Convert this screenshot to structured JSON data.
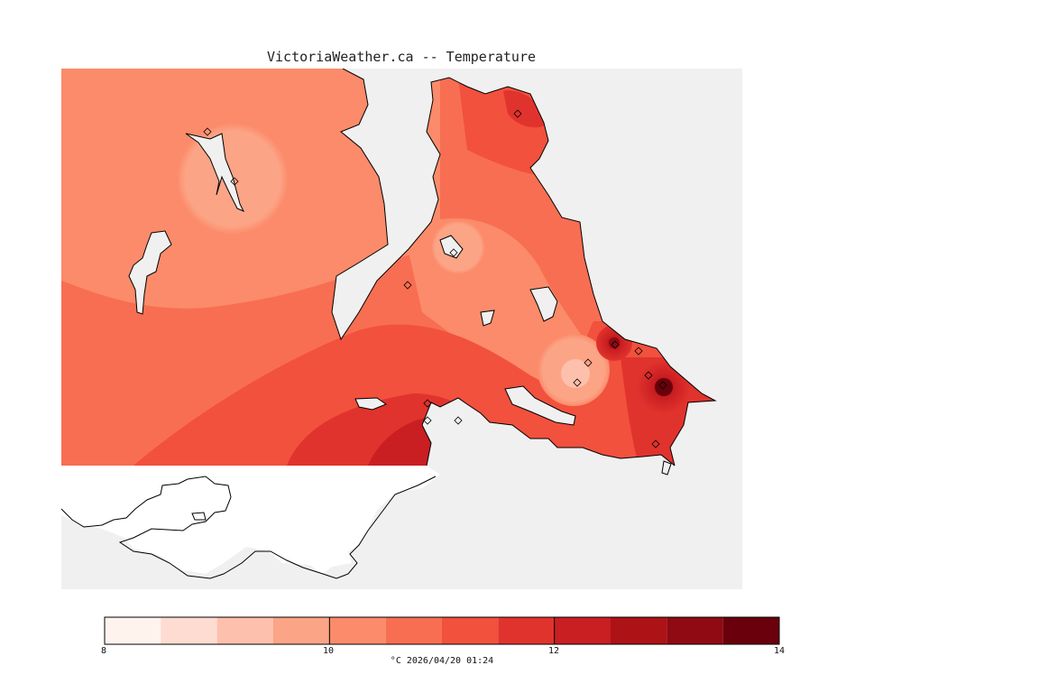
{
  "title": "VictoriaWeather.ca -- Temperature",
  "caption": "°C  2026/04/20 01:24",
  "colorbar": {
    "min": 8,
    "max": 14,
    "tick_labels": [
      "8",
      "10",
      "12",
      "14"
    ],
    "colors": [
      "#fff3ee",
      "#fedcd1",
      "#fdc0ac",
      "#fca486",
      "#fb8b6a",
      "#f86e52",
      "#f1513d",
      "#e1332d",
      "#c91e22",
      "#ad1217",
      "#8f0a12",
      "#6a000c"
    ]
  },
  "colors": {
    "ocean": "#f0f0f0",
    "land_outside": "#ffffff",
    "coastline": "#000000"
  },
  "stations_count_symbol": "diamond"
}
